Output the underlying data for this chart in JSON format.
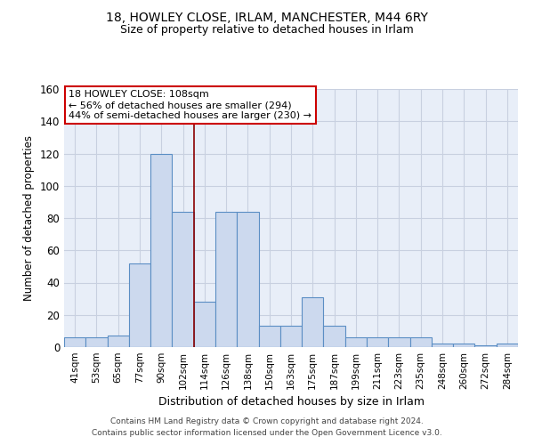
{
  "title1": "18, HOWLEY CLOSE, IRLAM, MANCHESTER, M44 6RY",
  "title2": "Size of property relative to detached houses in Irlam",
  "xlabel": "Distribution of detached houses by size in Irlam",
  "ylabel": "Number of detached properties",
  "footer1": "Contains HM Land Registry data © Crown copyright and database right 2024.",
  "footer2": "Contains public sector information licensed under the Open Government Licence v3.0.",
  "annotation_line1": "18 HOWLEY CLOSE: 108sqm",
  "annotation_line2": "← 56% of detached houses are smaller (294)",
  "annotation_line3": "44% of semi-detached houses are larger (230) →",
  "categories": [
    "41sqm",
    "53sqm",
    "65sqm",
    "77sqm",
    "90sqm",
    "102sqm",
    "114sqm",
    "126sqm",
    "138sqm",
    "150sqm",
    "163sqm",
    "175sqm",
    "187sqm",
    "199sqm",
    "211sqm",
    "223sqm",
    "235sqm",
    "248sqm",
    "260sqm",
    "272sqm",
    "284sqm"
  ],
  "values": [
    6,
    6,
    7,
    52,
    120,
    84,
    28,
    84,
    84,
    13,
    13,
    31,
    13,
    6,
    6,
    6,
    6,
    2,
    2,
    1,
    2
  ],
  "bar_color": "#ccd9ee",
  "bar_edge_color": "#5b8ec4",
  "vline_color": "#8b0000",
  "vline_x_index": 5.5,
  "annotation_box_facecolor": "#ffffff",
  "annotation_box_edgecolor": "#cc0000",
  "background_color": "#e8eef8",
  "grid_color": "#c8d0e0",
  "ylim": [
    0,
    160
  ],
  "yticks": [
    0,
    20,
    40,
    60,
    80,
    100,
    120,
    140,
    160
  ],
  "fig_width": 6.0,
  "fig_height": 5.0,
  "dpi": 100
}
